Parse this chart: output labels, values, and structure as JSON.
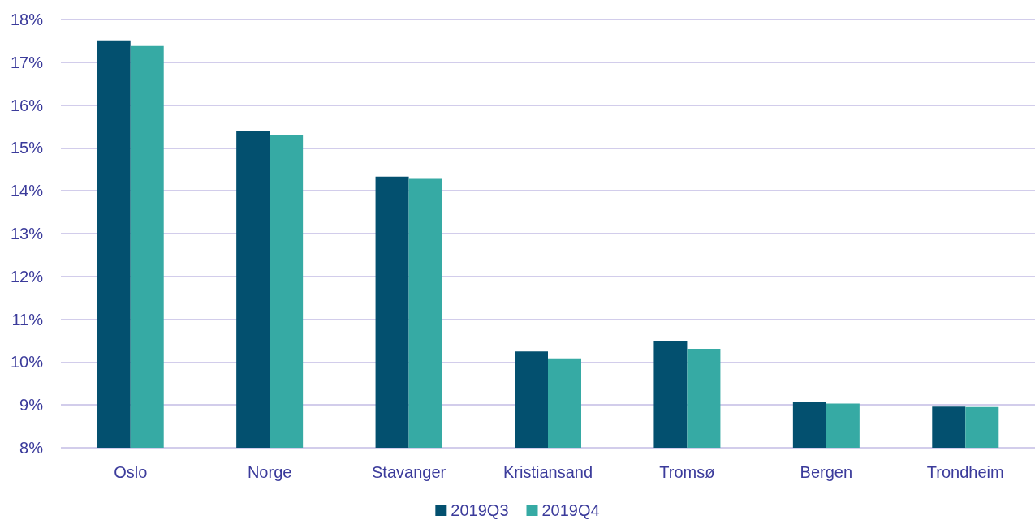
{
  "chart_data": {
    "type": "bar",
    "categories": [
      "Oslo",
      "Norge",
      "Stavanger",
      "Kristiansand",
      "Tromsø",
      "Bergen",
      "Trondheim"
    ],
    "series": [
      {
        "name": "2019Q3",
        "color": "#03506f",
        "values": [
          17.51,
          15.39,
          14.33,
          10.25,
          10.49,
          9.07,
          8.96
        ]
      },
      {
        "name": "2019Q4",
        "color": "#36aaa4",
        "values": [
          17.38,
          15.3,
          14.28,
          10.09,
          10.31,
          9.03,
          8.95
        ]
      }
    ],
    "ylim": [
      8,
      18
    ],
    "yticks": [
      {
        "value": 8,
        "label": "8%"
      },
      {
        "value": 9,
        "label": "9%"
      },
      {
        "value": 10,
        "label": "10%"
      },
      {
        "value": 11,
        "label": "11%"
      },
      {
        "value": 12,
        "label": "12%"
      },
      {
        "value": 13,
        "label": "13%"
      },
      {
        "value": 14,
        "label": "14%"
      },
      {
        "value": 15,
        "label": "15%"
      },
      {
        "value": 16,
        "label": "16%"
      },
      {
        "value": 17,
        "label": "17%"
      },
      {
        "value": 18,
        "label": "18%"
      }
    ],
    "grid": "y",
    "legend": "bottom"
  }
}
